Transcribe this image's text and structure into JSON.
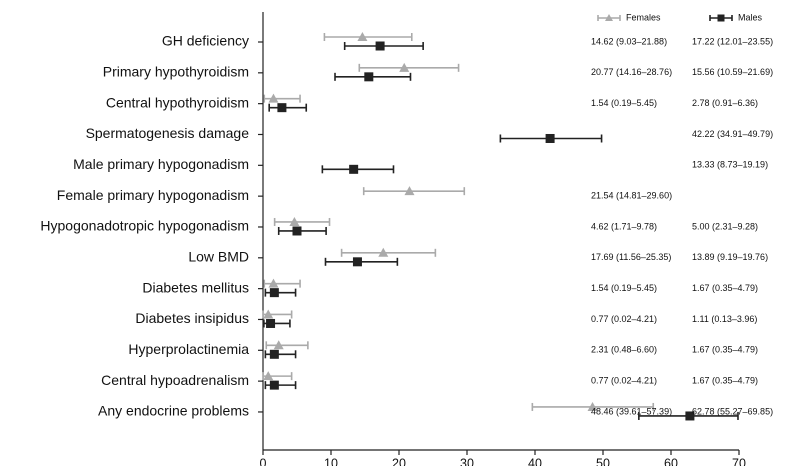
{
  "chart_data": {
    "type": "forest",
    "xlim": [
      0,
      70
    ],
    "xticks": [
      "0",
      "10",
      "20",
      "30",
      "40",
      "50",
      "60",
      "70"
    ],
    "colors": {
      "Females": "#aaaaaa",
      "Males": "#222222"
    },
    "series": [
      {
        "name": "Females",
        "marker": "triangle"
      },
      {
        "name": "Males",
        "marker": "square"
      }
    ],
    "categories": [
      "GH deficiency",
      "Primary hypothyroidism",
      "Central hypothyroidism",
      "Spermatogenesis damage",
      "Male primary hypogonadism",
      "Female primary hypogonadism",
      "Hypogonadotropic hypogonadism",
      "Low BMD",
      "Diabetes mellitus",
      "Diabetes insipidus",
      "Hyperprolactinemia",
      "Central hypoadrenalism",
      "Any endocrine problems"
    ],
    "females": [
      {
        "est": 14.62,
        "lo": 9.03,
        "hi": 21.88,
        "label": "14.62 (9.03–21.88)"
      },
      {
        "est": 20.77,
        "lo": 14.16,
        "hi": 28.76,
        "label": "20.77 (14.16–28.76)"
      },
      {
        "est": 1.54,
        "lo": 0.19,
        "hi": 5.45,
        "label": "1.54 (0.19–5.45)"
      },
      null,
      null,
      {
        "est": 21.54,
        "lo": 14.81,
        "hi": 29.6,
        "label": "21.54 (14.81–29.60)"
      },
      {
        "est": 4.62,
        "lo": 1.71,
        "hi": 9.78,
        "label": "4.62 (1.71–9.78)"
      },
      {
        "est": 17.69,
        "lo": 11.56,
        "hi": 25.35,
        "label": "17.69 (11.56–25.35)"
      },
      {
        "est": 1.54,
        "lo": 0.19,
        "hi": 5.45,
        "label": "1.54 (0.19–5.45)"
      },
      {
        "est": 0.77,
        "lo": 0.02,
        "hi": 4.21,
        "label": "0.77 (0.02–4.21)"
      },
      {
        "est": 2.31,
        "lo": 0.48,
        "hi": 6.6,
        "label": "2.31 (0.48–6.60)"
      },
      {
        "est": 0.77,
        "lo": 0.02,
        "hi": 4.21,
        "label": "0.77 (0.02–4.21)"
      },
      {
        "est": 48.46,
        "lo": 39.61,
        "hi": 57.39,
        "label": "48.46 (39.61–57.39)"
      }
    ],
    "males": [
      {
        "est": 17.22,
        "lo": 12.01,
        "hi": 23.55,
        "label": "17.22 (12.01–23.55)"
      },
      {
        "est": 15.56,
        "lo": 10.59,
        "hi": 21.69,
        "label": "15.56 (10.59–21.69)"
      },
      {
        "est": 2.78,
        "lo": 0.91,
        "hi": 6.36,
        "label": "2.78 (0.91–6.36)"
      },
      {
        "est": 42.22,
        "lo": 34.91,
        "hi": 49.79,
        "label": "42.22 (34.91–49.79)"
      },
      {
        "est": 13.33,
        "lo": 8.73,
        "hi": 19.19,
        "label": "13.33 (8.73–19.19)"
      },
      null,
      {
        "est": 5.0,
        "lo": 2.31,
        "hi": 9.28,
        "label": "5.00 (2.31–9.28)"
      },
      {
        "est": 13.89,
        "lo": 9.19,
        "hi": 19.76,
        "label": "13.89 (9.19–19.76)"
      },
      {
        "est": 1.67,
        "lo": 0.35,
        "hi": 4.79,
        "label": "1.67 (0.35–4.79)"
      },
      {
        "est": 1.11,
        "lo": 0.13,
        "hi": 3.96,
        "label": "1.11 (0.13–3.96)"
      },
      {
        "est": 1.67,
        "lo": 0.35,
        "hi": 4.79,
        "label": "1.67 (0.35–4.79)"
      },
      {
        "est": 1.67,
        "lo": 0.35,
        "hi": 4.79,
        "label": "1.67 (0.35–4.79)"
      },
      {
        "est": 62.78,
        "lo": 55.27,
        "hi": 69.85,
        "label": "62.78 (55.27–69.85)"
      }
    ],
    "legend_position": "top-right",
    "grid": false
  }
}
